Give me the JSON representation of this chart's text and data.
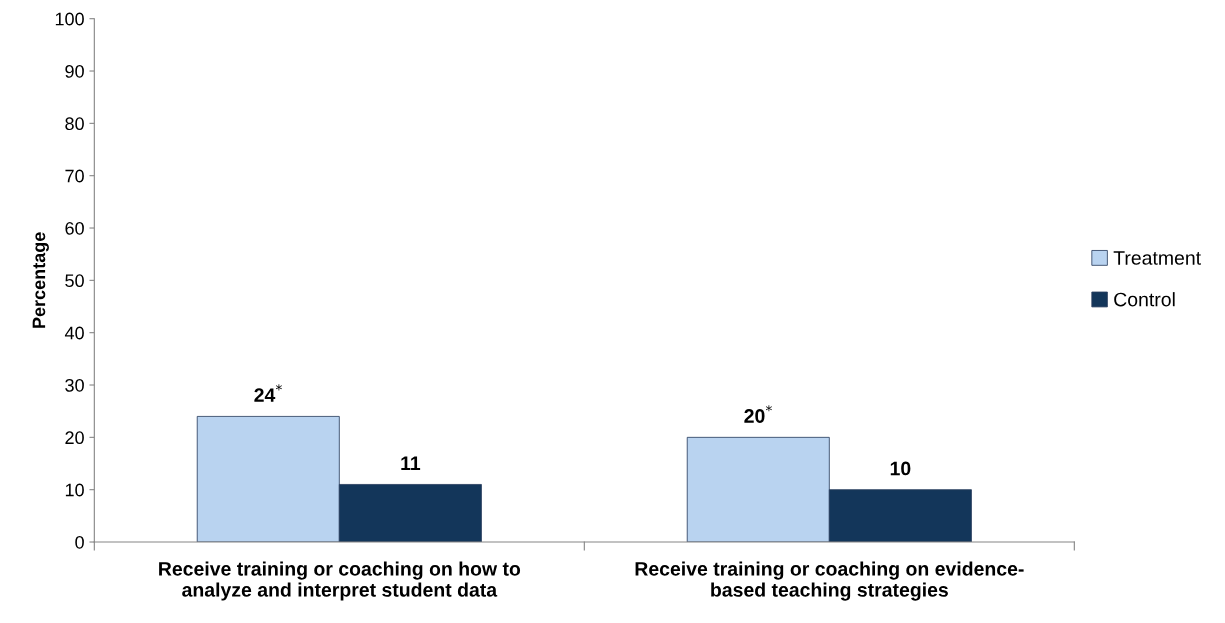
{
  "chart_data": {
    "type": "bar",
    "ylabel": "Percentage",
    "categories": [
      "Receive training or coaching on how to\nanalyze and interpret student data",
      "Receive training or coaching on evidence-\nbased teaching strategies"
    ],
    "series": [
      {
        "name": "Treatment",
        "color": "#b9d3f0",
        "values": [
          24,
          20
        ],
        "value_labels": [
          "24$^{*}$",
          "20$^{*}$"
        ]
      },
      {
        "name": "Control",
        "color": "#13365a",
        "values": [
          11,
          10
        ],
        "value_labels": [
          "11",
          "10"
        ]
      }
    ],
    "ylim": [
      0,
      100
    ],
    "yticks": [
      0,
      10,
      20,
      30,
      40,
      50,
      60,
      70,
      80,
      90,
      100
    ],
    "grid": false,
    "legend": "right"
  }
}
